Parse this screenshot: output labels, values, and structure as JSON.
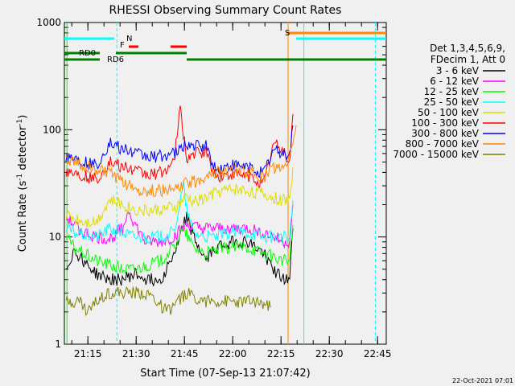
{
  "chart_data": {
    "type": "line",
    "title": "RHESSI Observing Summary Count Rates",
    "xlabel": "Start Time (07-Sep-13 21:07:42)",
    "ylabel_main": "Count Rate (s",
    "ylabel_sup1": "-1",
    "ylabel_mid": " detector",
    "ylabel_sup2": "-1",
    "ylabel_end": ")",
    "yscale": "log",
    "ylim": [
      1,
      1000
    ],
    "xlim_minutes": [
      0,
      100
    ],
    "xticks": [
      {
        "label": "21:15",
        "t": 7.3
      },
      {
        "label": "21:30",
        "t": 22.3
      },
      {
        "label": "21:45",
        "t": 37.3
      },
      {
        "label": "22:00",
        "t": 52.3
      },
      {
        "label": "22:15",
        "t": 67.3
      },
      {
        "label": "22:30",
        "t": 82.3
      },
      {
        "label": "22:45",
        "t": 97.3
      }
    ],
    "yticks": [
      {
        "label": "1",
        "v": 1
      },
      {
        "label": "10",
        "v": 10
      },
      {
        "label": "100",
        "v": 100
      },
      {
        "label": "1000",
        "v": 1000
      }
    ],
    "legend_header": [
      "Det 1,3,4,5,6,9,",
      "FDecim 1, Att 0"
    ],
    "legend_position": "right",
    "footer_date": "22-Oct-2021 07:01",
    "series": [
      {
        "name": "3 - 6 keV",
        "color": "#000000",
        "points": [
          [
            0.5,
            5
          ],
          [
            3,
            7.5
          ],
          [
            6,
            6
          ],
          [
            10,
            4.5
          ],
          [
            14,
            4
          ],
          [
            18,
            4
          ],
          [
            22,
            4.5
          ],
          [
            26,
            4
          ],
          [
            30,
            4
          ],
          [
            35,
            8
          ],
          [
            38,
            16
          ],
          [
            40,
            10
          ],
          [
            44,
            6
          ],
          [
            47,
            8
          ],
          [
            52,
            9
          ],
          [
            57,
            9
          ],
          [
            62,
            7
          ],
          [
            65,
            5
          ],
          [
            68,
            4
          ],
          [
            70,
            4
          ],
          [
            71,
            12
          ]
        ]
      },
      {
        "name": "6 - 12 keV",
        "color": "#ff00ff",
        "points": [
          [
            0.5,
            15
          ],
          [
            3,
            13
          ],
          [
            6,
            11
          ],
          [
            10,
            10
          ],
          [
            14,
            9.5
          ],
          [
            18,
            12
          ],
          [
            20,
            18
          ],
          [
            22,
            13
          ],
          [
            25,
            9
          ],
          [
            30,
            9
          ],
          [
            34,
            10
          ],
          [
            38,
            13
          ],
          [
            42,
            12
          ],
          [
            47,
            12
          ],
          [
            52,
            12
          ],
          [
            57,
            12
          ],
          [
            62,
            11
          ],
          [
            65,
            10
          ],
          [
            68,
            9
          ],
          [
            70,
            9
          ],
          [
            71,
            20
          ]
        ]
      },
      {
        "name": "12 - 25 keV",
        "color": "#00ff00",
        "points": [
          [
            0.5,
            10
          ],
          [
            3,
            8
          ],
          [
            6,
            7
          ],
          [
            10,
            6
          ],
          [
            14,
            5.5
          ],
          [
            18,
            5
          ],
          [
            22,
            5
          ],
          [
            26,
            5.5
          ],
          [
            30,
            6
          ],
          [
            34,
            8
          ],
          [
            37,
            12
          ],
          [
            40,
            8
          ],
          [
            44,
            7
          ],
          [
            47,
            7.5
          ],
          [
            52,
            8
          ],
          [
            57,
            8
          ],
          [
            62,
            7
          ],
          [
            65,
            6.5
          ],
          [
            68,
            6
          ],
          [
            70,
            6
          ],
          [
            71,
            13
          ]
        ]
      },
      {
        "name": "25 - 50 keV",
        "color": "#00ffff",
        "points": [
          [
            0.5,
            12
          ],
          [
            3,
            11
          ],
          [
            6,
            10.5
          ],
          [
            10,
            10
          ],
          [
            14,
            12
          ],
          [
            18,
            11
          ],
          [
            22,
            10
          ],
          [
            26,
            10
          ],
          [
            30,
            10
          ],
          [
            34,
            11
          ],
          [
            37,
            30
          ],
          [
            38,
            18
          ],
          [
            40,
            11
          ],
          [
            44,
            10
          ],
          [
            47,
            10
          ],
          [
            52,
            11
          ],
          [
            57,
            11
          ],
          [
            62,
            10
          ],
          [
            65,
            10
          ],
          [
            68,
            10
          ],
          [
            70,
            9.5
          ],
          [
            71,
            22
          ]
        ]
      },
      {
        "name": "50 - 100 keV",
        "color": "#dddd00",
        "points": [
          [
            0.5,
            16
          ],
          [
            3,
            15
          ],
          [
            6,
            14
          ],
          [
            10,
            14
          ],
          [
            14,
            22
          ],
          [
            18,
            20
          ],
          [
            22,
            18
          ],
          [
            26,
            17.5
          ],
          [
            30,
            18
          ],
          [
            35,
            19
          ],
          [
            38,
            24
          ],
          [
            40,
            21
          ],
          [
            44,
            23
          ],
          [
            47,
            26
          ],
          [
            52,
            28
          ],
          [
            57,
            27
          ],
          [
            62,
            25
          ],
          [
            65,
            23
          ],
          [
            68,
            22
          ],
          [
            70,
            22
          ],
          [
            71,
            45
          ]
        ]
      },
      {
        "name": "100 - 300 keV",
        "color": "#ff0000",
        "points": [
          [
            0.5,
            42
          ],
          [
            3,
            40
          ],
          [
            6,
            37
          ],
          [
            10,
            34
          ],
          [
            14,
            50
          ],
          [
            18,
            45
          ],
          [
            22,
            41
          ],
          [
            26,
            38
          ],
          [
            30,
            40
          ],
          [
            34,
            48
          ],
          [
            36,
            160
          ],
          [
            37,
            90
          ],
          [
            38,
            55
          ],
          [
            41,
            60
          ],
          [
            44,
            62
          ],
          [
            47,
            36
          ],
          [
            52,
            38
          ],
          [
            57,
            37
          ],
          [
            62,
            32
          ],
          [
            65,
            75
          ],
          [
            68,
            65
          ],
          [
            70,
            50
          ],
          [
            71,
            140
          ]
        ]
      },
      {
        "name": "300 - 800 keV",
        "color": "#0000ff",
        "points": [
          [
            0.5,
            58
          ],
          [
            3,
            55
          ],
          [
            6,
            50
          ],
          [
            10,
            46
          ],
          [
            14,
            75
          ],
          [
            18,
            66
          ],
          [
            22,
            60
          ],
          [
            26,
            56
          ],
          [
            30,
            57
          ],
          [
            35,
            60
          ],
          [
            38,
            75
          ],
          [
            40,
            70
          ],
          [
            44,
            70
          ],
          [
            47,
            42
          ],
          [
            52,
            46
          ],
          [
            57,
            45
          ],
          [
            62,
            40
          ],
          [
            65,
            65
          ],
          [
            68,
            60
          ],
          [
            70,
            60
          ],
          [
            71,
            110
          ]
        ]
      },
      {
        "name": "800 - 7000 keV",
        "color": "#ff8800",
        "points": [
          [
            0.5,
            52
          ],
          [
            3,
            50
          ],
          [
            6,
            46
          ],
          [
            10,
            42
          ],
          [
            14,
            40
          ],
          [
            18,
            32
          ],
          [
            22,
            28
          ],
          [
            26,
            27
          ],
          [
            30,
            27
          ],
          [
            35,
            28
          ],
          [
            38,
            32
          ],
          [
            41,
            33
          ],
          [
            44,
            38
          ],
          [
            47,
            40
          ],
          [
            52,
            42
          ],
          [
            57,
            41
          ],
          [
            62,
            36
          ],
          [
            65,
            45
          ],
          [
            68,
            42
          ],
          [
            70,
            55
          ],
          [
            71,
            80
          ],
          [
            72,
            110
          ]
        ]
      },
      {
        "name": "7000 - 15000 keV",
        "color": "#808000",
        "points": [
          [
            0.5,
            2.5
          ],
          [
            5,
            2.5
          ],
          [
            7,
            2
          ],
          [
            10,
            2.5
          ],
          [
            13,
            3
          ],
          [
            18,
            3
          ],
          [
            22,
            3
          ],
          [
            26,
            3
          ],
          [
            32,
            2
          ],
          [
            38,
            3
          ],
          [
            44,
            2.5
          ],
          [
            47,
            2.5
          ],
          [
            52,
            2.5
          ],
          [
            56,
            2.5
          ],
          [
            60,
            2.5
          ],
          [
            64,
            2.2
          ]
        ]
      }
    ],
    "flags": [
      {
        "label": "N",
        "color": "#00ffff",
        "segments": [
          [
            0,
            15.5
          ],
          [
            72,
            100
          ]
        ]
      },
      {
        "label": "RD0",
        "color": "#008000",
        "segments": [
          [
            0,
            11
          ],
          [
            16,
            38
          ]
        ]
      },
      {
        "label": "RD6",
        "color": "#008000",
        "segments": [
          [
            0,
            11
          ],
          [
            38,
            61
          ],
          [
            61,
            100
          ]
        ]
      },
      {
        "label": "F",
        "color": "#ff0000",
        "segments": [
          [
            20,
            23
          ],
          [
            33,
            38
          ]
        ]
      },
      {
        "label": "S",
        "color": "#ff8800",
        "segments": [
          [
            69,
            100
          ]
        ]
      }
    ],
    "vlines": [
      {
        "t": 0.8,
        "color": "#00ff00",
        "style": "solid"
      },
      {
        "t": 16.3,
        "color": "#00ffff",
        "style": "dashed"
      },
      {
        "t": 69.5,
        "color": "#ff8800",
        "style": "solid"
      },
      {
        "t": 74.4,
        "color": "#00ffff",
        "style": "solid"
      },
      {
        "t": 96.6,
        "color": "#00ffff",
        "style": "dashed"
      }
    ]
  }
}
